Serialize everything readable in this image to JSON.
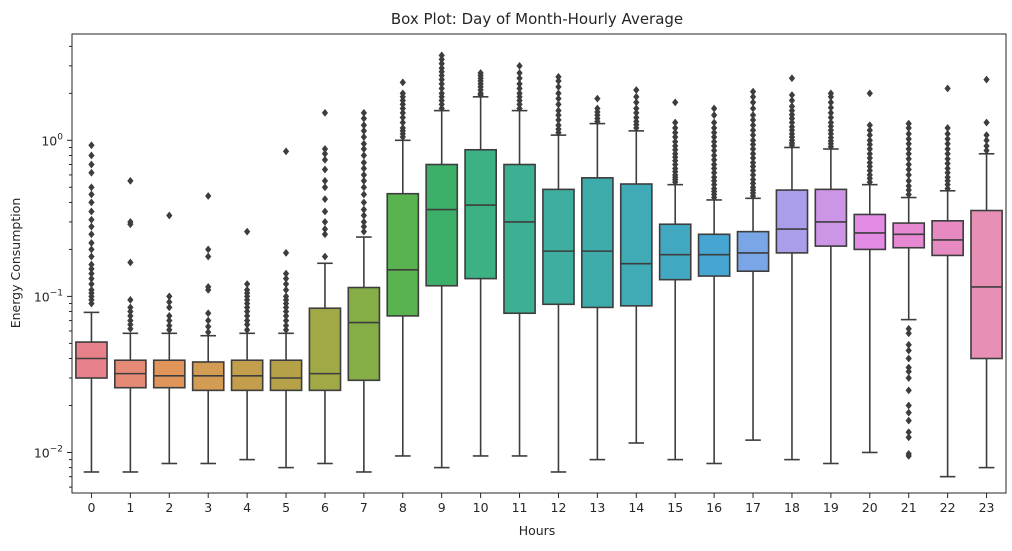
{
  "chart_data": {
    "type": "box",
    "title": "Box Plot: Day of Month-Hourly Average",
    "xlabel": "Hours",
    "ylabel": "Energy Consumption",
    "yscale": "log",
    "ylim": [
      0.0055,
      4.8
    ],
    "grid": false,
    "categories": [
      "0",
      "1",
      "2",
      "3",
      "4",
      "5",
      "6",
      "7",
      "8",
      "9",
      "10",
      "11",
      "12",
      "13",
      "14",
      "15",
      "16",
      "17",
      "18",
      "19",
      "20",
      "21",
      "22",
      "23"
    ],
    "y_ticks": [
      {
        "value": 0.01,
        "base": "10",
        "exp": "−2"
      },
      {
        "value": 0.1,
        "base": "10",
        "exp": "−1"
      },
      {
        "value": 1,
        "base": "10",
        "exp": "0"
      }
    ],
    "boxes": [
      {
        "hour": "0",
        "color": "#e8828a",
        "whislo": 0.0075,
        "q1": 0.03,
        "med": 0.04,
        "q3": 0.051,
        "whishi": 0.079,
        "fliers": [
          0.09,
          0.095,
          0.1,
          0.105,
          0.11,
          0.12,
          0.13,
          0.14,
          0.15,
          0.16,
          0.18,
          0.2,
          0.22,
          0.25,
          0.28,
          0.31,
          0.35,
          0.4,
          0.45,
          0.5,
          0.62,
          0.7,
          0.8,
          0.93
        ]
      },
      {
        "hour": "1",
        "color": "#e58a75",
        "whislo": 0.0075,
        "q1": 0.026,
        "med": 0.032,
        "q3": 0.039,
        "whishi": 0.058,
        "fliers": [
          0.062,
          0.066,
          0.07,
          0.075,
          0.08,
          0.085,
          0.095,
          0.165,
          0.29,
          0.3,
          0.55
        ]
      },
      {
        "hour": "2",
        "color": "#e0955a",
        "whislo": 0.0085,
        "q1": 0.026,
        "med": 0.031,
        "q3": 0.039,
        "whishi": 0.058,
        "fliers": [
          0.061,
          0.065,
          0.07,
          0.075,
          0.085,
          0.092,
          0.1,
          0.33
        ]
      },
      {
        "hour": "3",
        "color": "#d29c54",
        "whislo": 0.0085,
        "q1": 0.025,
        "med": 0.031,
        "q3": 0.038,
        "whishi": 0.056,
        "fliers": [
          0.059,
          0.064,
          0.07,
          0.078,
          0.11,
          0.115,
          0.18,
          0.2,
          0.44
        ]
      },
      {
        "hour": "4",
        "color": "#c39f4d",
        "whislo": 0.009,
        "q1": 0.025,
        "med": 0.031,
        "q3": 0.039,
        "whishi": 0.058,
        "fliers": [
          0.061,
          0.066,
          0.07,
          0.075,
          0.08,
          0.085,
          0.09,
          0.095,
          0.1,
          0.105,
          0.11,
          0.12,
          0.26
        ]
      },
      {
        "hour": "5",
        "color": "#b5a248",
        "whislo": 0.008,
        "q1": 0.025,
        "med": 0.03,
        "q3": 0.039,
        "whishi": 0.058,
        "fliers": [
          0.061,
          0.065,
          0.07,
          0.075,
          0.08,
          0.085,
          0.09,
          0.095,
          0.1,
          0.11,
          0.12,
          0.13,
          0.14,
          0.19,
          0.85
        ]
      },
      {
        "hour": "6",
        "color": "#a0a945",
        "whislo": 0.0085,
        "q1": 0.025,
        "med": 0.032,
        "q3": 0.084,
        "whishi": 0.163,
        "fliers": [
          0.18,
          0.25,
          0.27,
          0.3,
          0.35,
          0.42,
          0.5,
          0.55,
          0.65,
          0.75,
          0.82,
          0.88,
          1.5
        ]
      },
      {
        "hour": "7",
        "color": "#86ae47",
        "whislo": 0.0075,
        "q1": 0.029,
        "med": 0.068,
        "q3": 0.114,
        "whishi": 0.24,
        "fliers": [
          0.26,
          0.28,
          0.3,
          0.33,
          0.36,
          0.4,
          0.45,
          0.5,
          0.55,
          0.6,
          0.66,
          0.72,
          0.8,
          0.88,
          0.95,
          1.05,
          1.15,
          1.25,
          1.38,
          1.5
        ]
      },
      {
        "hour": "8",
        "color": "#59b34f",
        "whislo": 0.0095,
        "q1": 0.075,
        "med": 0.148,
        "q3": 0.455,
        "whishi": 1.0,
        "fliers": [
          1.05,
          1.1,
          1.15,
          1.2,
          1.3,
          1.4,
          1.5,
          1.6,
          1.7,
          1.8,
          1.9,
          2.0,
          2.35
        ]
      },
      {
        "hour": "9",
        "color": "#3cb068",
        "whislo": 0.008,
        "q1": 0.117,
        "med": 0.36,
        "q3": 0.7,
        "whishi": 1.55,
        "fliers": [
          1.6,
          1.7,
          1.8,
          1.9,
          2.0,
          2.15,
          2.3,
          2.45,
          2.6,
          2.75,
          2.9,
          3.1,
          3.3,
          3.5
        ]
      },
      {
        "hour": "10",
        "color": "#3cb183",
        "whislo": 0.0095,
        "q1": 0.13,
        "med": 0.385,
        "q3": 0.87,
        "whishi": 1.9,
        "fliers": [
          1.95,
          2.0,
          2.1,
          2.2,
          2.3,
          2.4,
          2.5,
          2.6,
          2.7
        ]
      },
      {
        "hour": "11",
        "color": "#3db093",
        "whislo": 0.0095,
        "q1": 0.078,
        "med": 0.3,
        "q3": 0.7,
        "whishi": 1.55,
        "fliers": [
          1.6,
          1.7,
          1.8,
          1.9,
          2.0,
          2.15,
          2.3,
          2.5,
          2.7,
          3.0
        ]
      },
      {
        "hour": "12",
        "color": "#3eaea0",
        "whislo": 0.0075,
        "q1": 0.089,
        "med": 0.195,
        "q3": 0.485,
        "whishi": 1.08,
        "fliers": [
          1.12,
          1.18,
          1.25,
          1.35,
          1.45,
          1.55,
          1.7,
          1.85,
          2.0,
          2.2,
          2.4,
          2.55
        ]
      },
      {
        "hour": "13",
        "color": "#3facac",
        "whislo": 0.009,
        "q1": 0.085,
        "med": 0.195,
        "q3": 0.575,
        "whishi": 1.28,
        "fliers": [
          1.32,
          1.38,
          1.45,
          1.52,
          1.6,
          1.85
        ]
      },
      {
        "hour": "14",
        "color": "#40aab6",
        "whislo": 0.0115,
        "q1": 0.087,
        "med": 0.162,
        "q3": 0.525,
        "whishi": 1.15,
        "fliers": [
          1.2,
          1.26,
          1.32,
          1.4,
          1.5,
          1.6,
          1.75,
          1.9,
          2.1
        ]
      },
      {
        "hour": "15",
        "color": "#42a8c2",
        "whislo": 0.009,
        "q1": 0.128,
        "med": 0.185,
        "q3": 0.29,
        "whishi": 0.52,
        "fliers": [
          0.54,
          0.56,
          0.58,
          0.6,
          0.63,
          0.66,
          0.7,
          0.74,
          0.78,
          0.82,
          0.87,
          0.92,
          0.98,
          1.05,
          1.12,
          1.2,
          1.3,
          1.75
        ]
      },
      {
        "hour": "16",
        "color": "#46a5d1",
        "whislo": 0.0085,
        "q1": 0.135,
        "med": 0.185,
        "q3": 0.25,
        "whishi": 0.415,
        "fliers": [
          0.43,
          0.45,
          0.47,
          0.49,
          0.52,
          0.55,
          0.58,
          0.62,
          0.66,
          0.7,
          0.75,
          0.8,
          0.86,
          0.92,
          0.98,
          1.05,
          1.12,
          1.2,
          1.3,
          1.45,
          1.6
        ]
      },
      {
        "hour": "17",
        "color": "#7aa5e6",
        "whislo": 0.012,
        "q1": 0.145,
        "med": 0.19,
        "q3": 0.26,
        "whishi": 0.425,
        "fliers": [
          0.44,
          0.46,
          0.48,
          0.5,
          0.53,
          0.56,
          0.6,
          0.64,
          0.68,
          0.72,
          0.77,
          0.82,
          0.88,
          0.94,
          1.0,
          1.08,
          1.16,
          1.25,
          1.35,
          1.45,
          1.6,
          1.75,
          1.9,
          2.05
        ]
      },
      {
        "hour": "18",
        "color": "#aa9de9",
        "whislo": 0.009,
        "q1": 0.19,
        "med": 0.27,
        "q3": 0.48,
        "whishi": 0.9,
        "fliers": [
          0.93,
          0.96,
          1.0,
          1.05,
          1.1,
          1.16,
          1.22,
          1.3,
          1.38,
          1.46,
          1.55,
          1.65,
          1.8,
          1.95,
          2.5
        ]
      },
      {
        "hour": "19",
        "color": "#cd95e6",
        "whislo": 0.0085,
        "q1": 0.21,
        "med": 0.3,
        "q3": 0.485,
        "whishi": 0.88,
        "fliers": [
          0.91,
          0.95,
          0.99,
          1.04,
          1.1,
          1.16,
          1.23,
          1.3,
          1.4,
          1.5,
          1.62,
          1.75,
          1.9,
          2.0
        ]
      },
      {
        "hour": "20",
        "color": "#e28ae4",
        "whislo": 0.01,
        "q1": 0.2,
        "med": 0.255,
        "q3": 0.335,
        "whishi": 0.52,
        "fliers": [
          0.54,
          0.57,
          0.6,
          0.64,
          0.68,
          0.72,
          0.77,
          0.82,
          0.88,
          0.94,
          1.0,
          1.08,
          1.16,
          1.25,
          2.0
        ]
      },
      {
        "hour": "21",
        "color": "#e688d2",
        "whislo": 0.071,
        "q1": 0.205,
        "med": 0.25,
        "q3": 0.295,
        "whishi": 0.43,
        "fliers": [
          0.0095,
          0.0098,
          0.0125,
          0.0135,
          0.016,
          0.018,
          0.02,
          0.025,
          0.03,
          0.033,
          0.035,
          0.04,
          0.045,
          0.049,
          0.058,
          0.062,
          0.45,
          0.48,
          0.51,
          0.55,
          0.6,
          0.65,
          0.7,
          0.76,
          0.82,
          0.88,
          0.95,
          1.02,
          1.1,
          1.2,
          1.28
        ]
      },
      {
        "hour": "22",
        "color": "#e78ac1",
        "whislo": 0.007,
        "q1": 0.183,
        "med": 0.23,
        "q3": 0.305,
        "whishi": 0.475,
        "fliers": [
          0.49,
          0.52,
          0.55,
          0.58,
          0.62,
          0.66,
          0.71,
          0.76,
          0.82,
          0.88,
          0.95,
          1.02,
          1.1,
          1.2,
          2.15
        ]
      },
      {
        "hour": "23",
        "color": "#e78fb4",
        "whislo": 0.008,
        "q1": 0.04,
        "med": 0.115,
        "q3": 0.355,
        "whishi": 0.82,
        "fliers": [
          0.86,
          0.92,
          1.0,
          1.08,
          1.3,
          2.45
        ]
      }
    ]
  }
}
